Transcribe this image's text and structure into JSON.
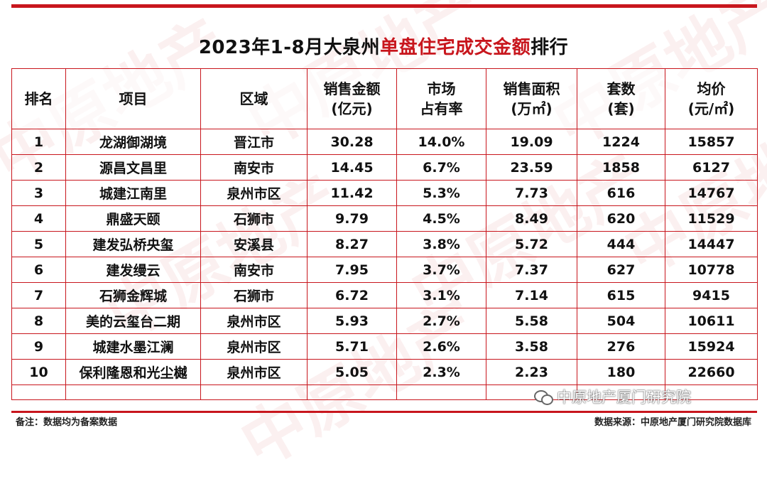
{
  "title": {
    "prefix": "2023年1-8月大泉州",
    "highlight": "单盘住宅成交金额",
    "suffix": "排行"
  },
  "headers": {
    "rank": "排名",
    "project": "项目",
    "area": "区域",
    "amount_l1": "销售金额",
    "amount_l2": "(亿元)",
    "share_l1": "市场",
    "share_l2": "占有率",
    "size_l1": "销售面积",
    "size_l2": "(万㎡)",
    "units_l1": "套数",
    "units_l2": "(套)",
    "price_l1": "均价",
    "price_l2": "(元/㎡)"
  },
  "rows": [
    {
      "rank": "1",
      "project": "龙湖御湖境",
      "area": "晋江市",
      "amount": "30.28",
      "share": "14.0%",
      "size": "19.09",
      "units": "1224",
      "price": "15857"
    },
    {
      "rank": "2",
      "project": "源昌文昌里",
      "area": "南安市",
      "amount": "14.45",
      "share": "6.7%",
      "size": "23.59",
      "units": "1858",
      "price": "6127"
    },
    {
      "rank": "3",
      "project": "城建江南里",
      "area": "泉州市区",
      "amount": "11.42",
      "share": "5.3%",
      "size": "7.73",
      "units": "616",
      "price": "14767"
    },
    {
      "rank": "4",
      "project": "鼎盛天颐",
      "area": "石狮市",
      "amount": "9.79",
      "share": "4.5%",
      "size": "8.49",
      "units": "620",
      "price": "11529"
    },
    {
      "rank": "5",
      "project": "建发弘桥央玺",
      "area": "安溪县",
      "amount": "8.27",
      "share": "3.8%",
      "size": "5.72",
      "units": "444",
      "price": "14447"
    },
    {
      "rank": "6",
      "project": "建发缦云",
      "area": "南安市",
      "amount": "7.95",
      "share": "3.7%",
      "size": "7.37",
      "units": "627",
      "price": "10778"
    },
    {
      "rank": "7",
      "project": "石狮金辉城",
      "area": "石狮市",
      "amount": "6.72",
      "share": "3.1%",
      "size": "7.14",
      "units": "615",
      "price": "9415"
    },
    {
      "rank": "8",
      "project": "美的云玺台二期",
      "area": "泉州市区",
      "amount": "5.93",
      "share": "2.7%",
      "size": "5.58",
      "units": "504",
      "price": "10611"
    },
    {
      "rank": "9",
      "project": "城建水墨江澜",
      "area": "泉州市区",
      "amount": "5.71",
      "share": "2.6%",
      "size": "3.58",
      "units": "276",
      "price": "15924"
    },
    {
      "rank": "10",
      "project": "保利隆恩和光尘樾",
      "area": "泉州市区",
      "amount": "5.05",
      "share": "2.3%",
      "size": "2.23",
      "units": "180",
      "price": "22660"
    }
  ],
  "footer": {
    "note": "备注：数据均为备案数据",
    "source": "数据来源：中原地产厦门研究院数据库"
  },
  "watermark": {
    "text": "中原地产"
  },
  "wechat": {
    "text": "中原地产厦门研究院",
    "icon": "wechat-icon"
  },
  "colors": {
    "accent": "#c8161d"
  }
}
